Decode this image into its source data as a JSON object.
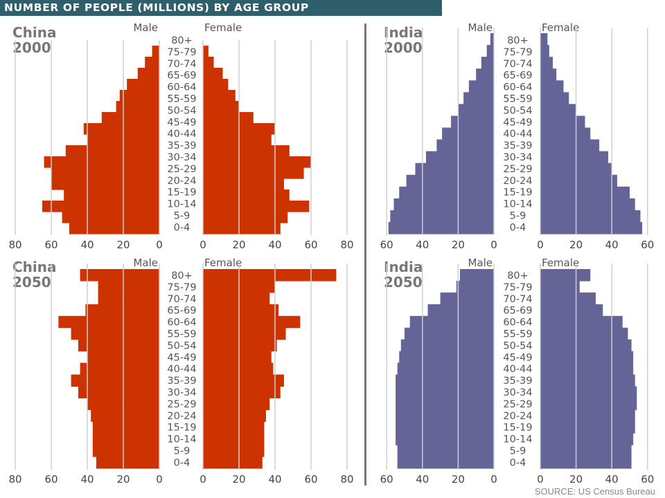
{
  "header": {
    "title": "NUMBER OF PEOPLE (MILLIONS) BY AGE GROUP"
  },
  "source": "SOURCE: US Census Bureau",
  "labels": {
    "male": "Male",
    "female": "Female"
  },
  "colors": {
    "china": "#cc3300",
    "india": "#656497",
    "header_bg": "#2f5f6b",
    "grid": "#cfcfcf"
  },
  "chart_data": [
    {
      "type": "bar",
      "country": "China",
      "year": "2000",
      "categories": [
        "0-4",
        "5-9",
        "10-14",
        "15-19",
        "20-24",
        "25-29",
        "30-34",
        "35-39",
        "40-44",
        "45-49",
        "50-54",
        "55-59",
        "60-64",
        "65-69",
        "70-74",
        "75-79",
        "80+"
      ],
      "series": [
        {
          "name": "Male",
          "values": [
            50,
            54,
            65,
            53,
            60,
            60,
            64,
            52,
            40,
            42,
            32,
            24,
            22,
            18,
            12,
            8,
            4
          ]
        },
        {
          "name": "Female",
          "values": [
            43,
            47,
            59,
            48,
            45,
            56,
            60,
            48,
            38,
            40,
            28,
            20,
            18,
            14,
            11,
            6,
            3
          ]
        }
      ],
      "xlim": [
        0,
        80
      ],
      "ticks": [
        "80",
        "60",
        "40",
        "20",
        "0",
        "0",
        "20",
        "40",
        "60",
        "80"
      ]
    },
    {
      "type": "bar",
      "country": "India",
      "year": "2000",
      "categories": [
        "0-4",
        "5-9",
        "10-14",
        "15-19",
        "20-24",
        "25-29",
        "30-34",
        "35-39",
        "40-44",
        "45-49",
        "50-54",
        "55-59",
        "60-64",
        "65-69",
        "70-74",
        "75-79",
        "80+"
      ],
      "series": [
        {
          "name": "Male",
          "values": [
            59,
            58,
            56,
            53,
            49,
            44,
            38,
            32,
            29,
            24,
            20,
            17,
            14,
            10,
            7,
            4,
            2
          ]
        },
        {
          "name": "Female",
          "values": [
            57,
            56,
            53,
            50,
            43,
            40,
            38,
            33,
            28,
            25,
            20,
            16,
            13,
            9,
            7,
            5,
            4
          ]
        }
      ],
      "xlim": [
        0,
        60
      ],
      "ticks": [
        "60",
        "40",
        "20",
        "0",
        "0",
        "20",
        "40",
        "60"
      ]
    },
    {
      "type": "bar",
      "country": "China",
      "year": "2050",
      "categories": [
        "0-4",
        "5-9",
        "10-14",
        "15-19",
        "20-24",
        "25-29",
        "30-34",
        "35-39",
        "40-44",
        "45-49",
        "50-54",
        "55-59",
        "60-64",
        "65-69",
        "70-74",
        "75-79",
        "80+"
      ],
      "series": [
        {
          "name": "Male",
          "values": [
            35,
            37,
            37,
            37,
            38,
            40,
            45,
            49,
            44,
            40,
            45,
            49,
            56,
            41,
            34,
            34,
            44
          ]
        },
        {
          "name": "Female",
          "values": [
            33,
            34,
            34,
            34,
            35,
            37,
            43,
            45,
            39,
            38,
            41,
            46,
            54,
            42,
            37,
            40,
            74
          ]
        }
      ],
      "xlim": [
        0,
        80
      ],
      "ticks": [
        "80",
        "60",
        "40",
        "20",
        "0",
        "0",
        "20",
        "40",
        "60",
        "80"
      ]
    },
    {
      "type": "bar",
      "country": "India",
      "year": "2050",
      "categories": [
        "0-4",
        "5-9",
        "10-14",
        "15-19",
        "20-24",
        "25-29",
        "30-34",
        "35-39",
        "40-44",
        "45-49",
        "50-54",
        "55-59",
        "60-64",
        "65-69",
        "70-74",
        "75-79",
        "80+"
      ],
      "series": [
        {
          "name": "Male",
          "values": [
            54,
            54,
            55,
            55,
            55,
            55,
            55,
            55,
            54,
            53,
            52,
            50,
            47,
            37,
            30,
            21,
            19
          ]
        },
        {
          "name": "Female",
          "values": [
            51,
            51,
            52,
            53,
            53,
            54,
            54,
            53,
            52,
            52,
            51,
            49,
            46,
            35,
            31,
            22,
            28
          ]
        }
      ],
      "xlim": [
        0,
        60
      ],
      "ticks": [
        "60",
        "40",
        "20",
        "0",
        "0",
        "20",
        "40",
        "60"
      ]
    }
  ]
}
